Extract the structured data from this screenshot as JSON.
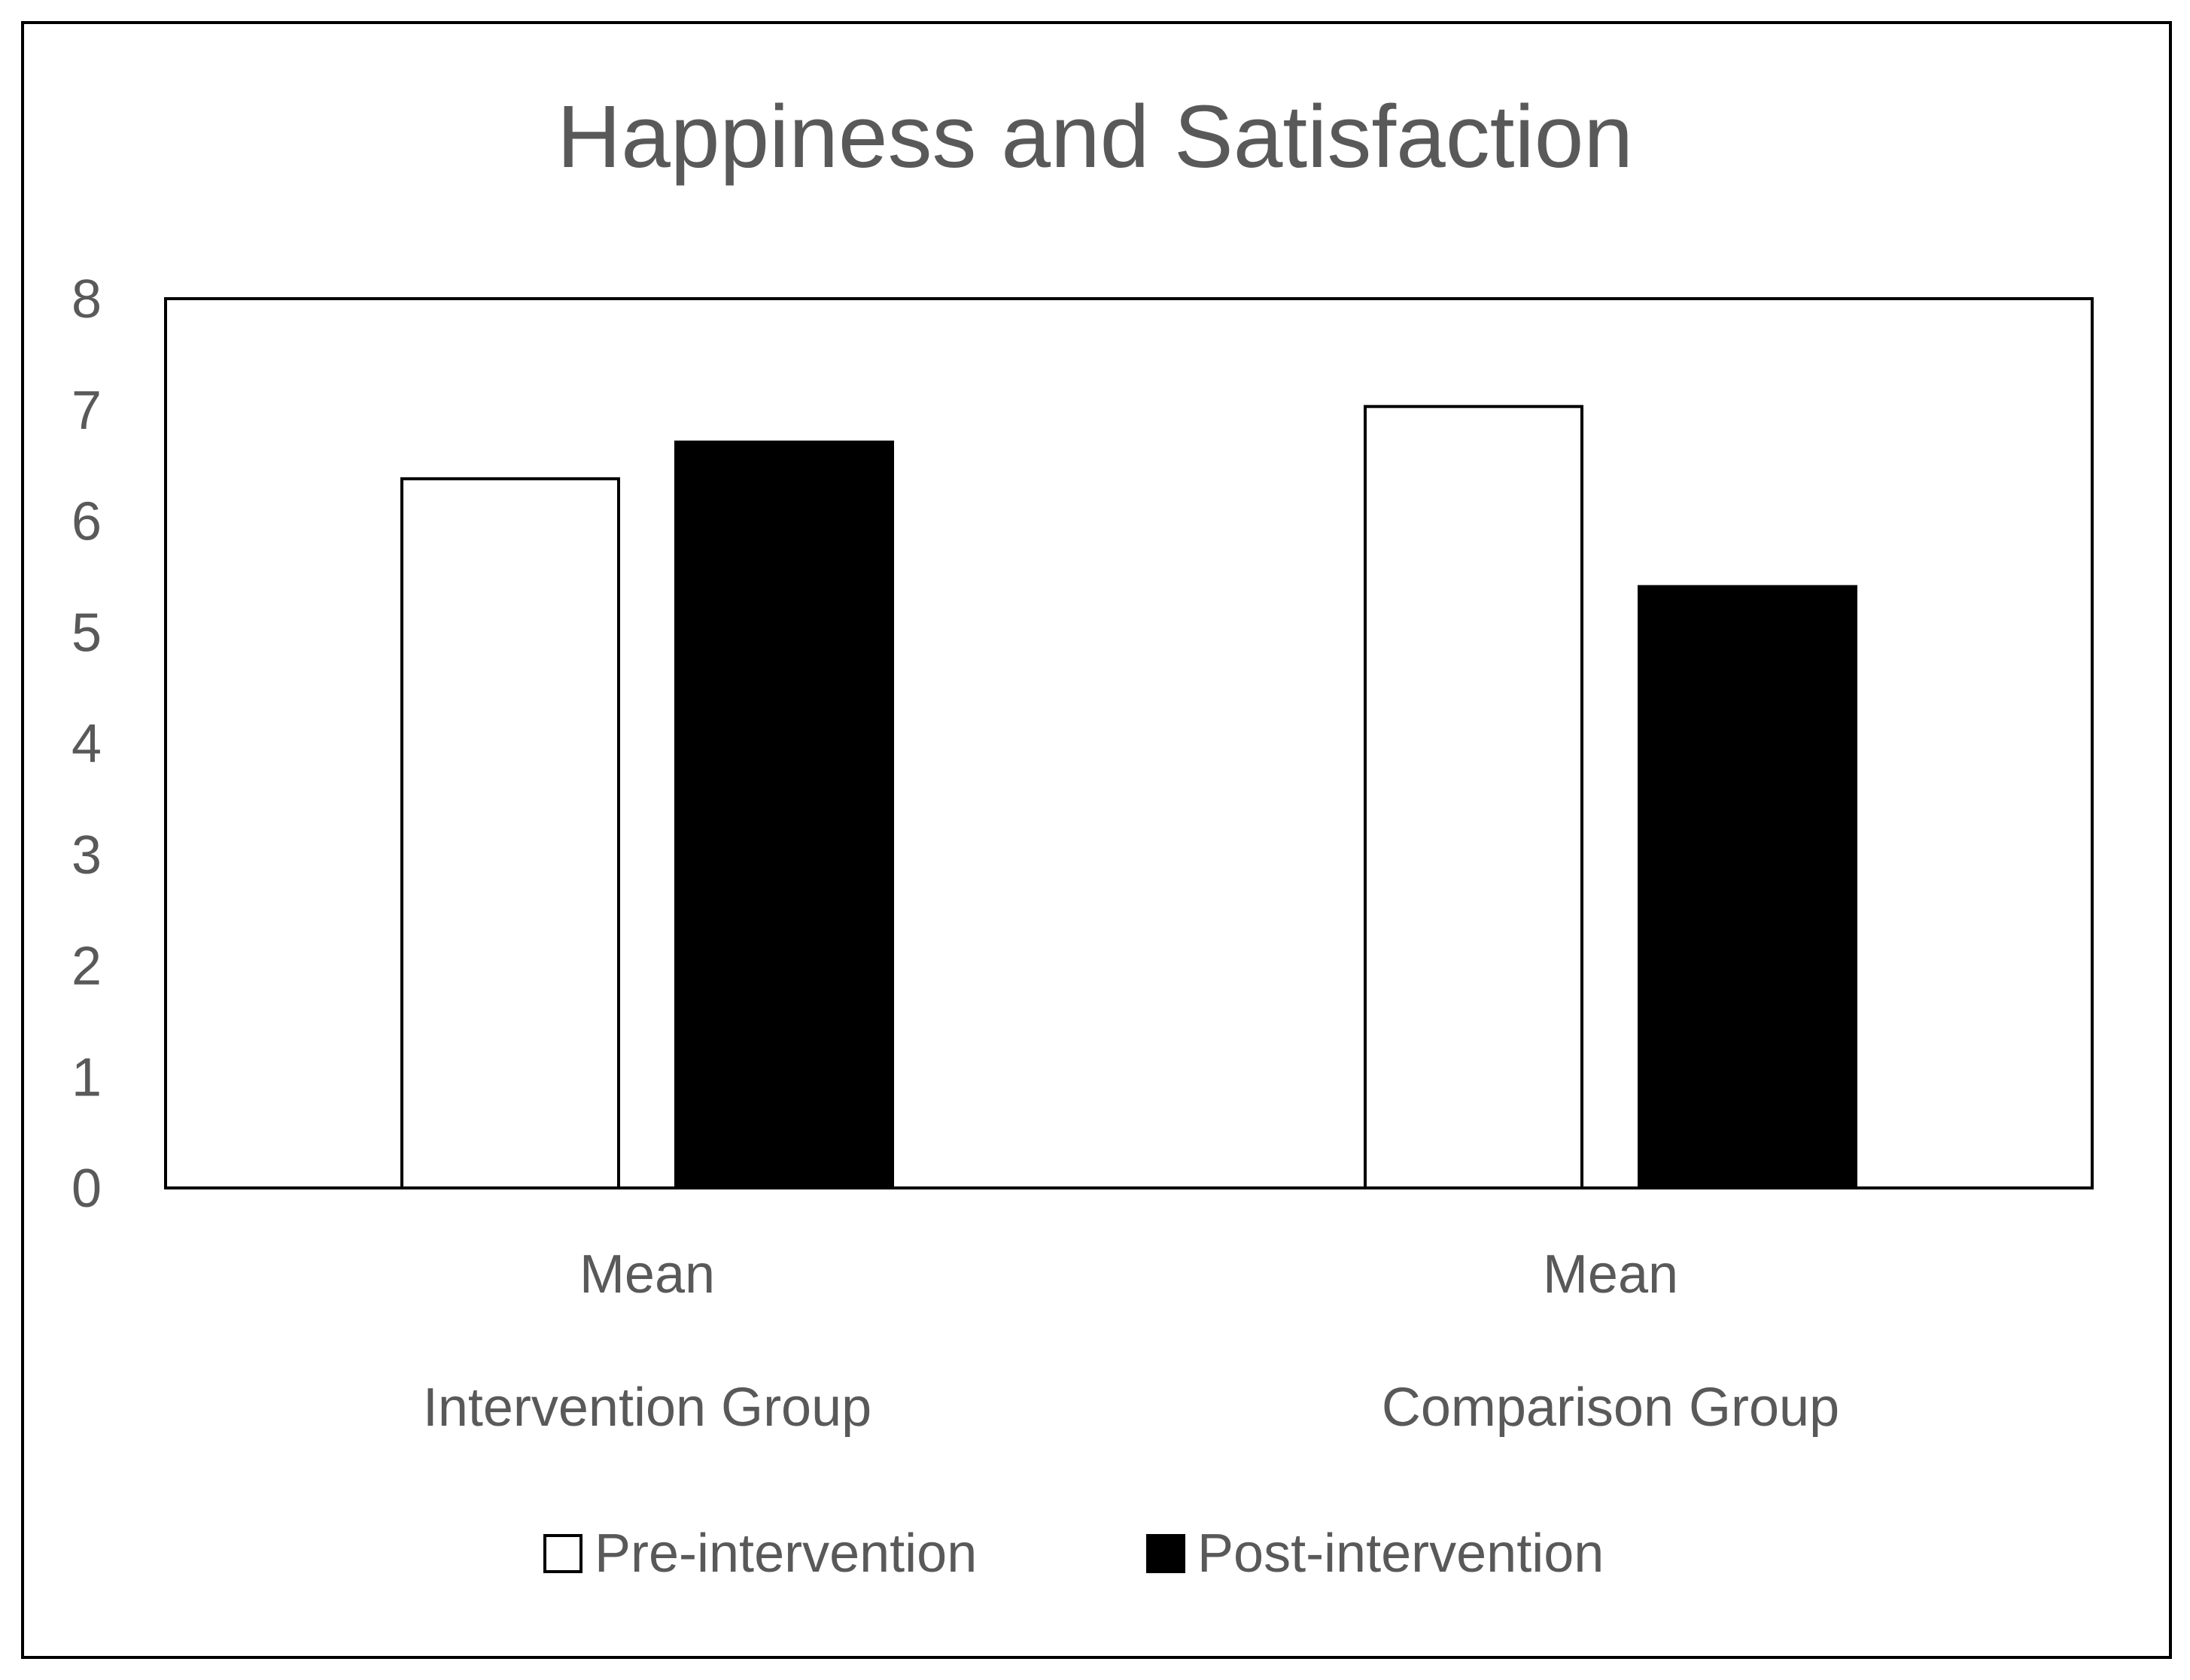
{
  "chart_data": {
    "type": "bar",
    "title": "Happiness and Satisfaction",
    "xlabel": "",
    "ylabel": "",
    "ylim": [
      0,
      8
    ],
    "yticks": [
      0,
      1,
      2,
      3,
      4,
      5,
      6,
      7,
      8
    ],
    "grid": false,
    "legend_position": "bottom",
    "categories": [
      {
        "line1": "Mean",
        "line2": "Intervention Group"
      },
      {
        "line1": "Mean",
        "line2": "Comparison Group"
      }
    ],
    "series": [
      {
        "name": "Pre-intervention",
        "color": "#ffffff",
        "values": [
          6.38,
          7.03
        ]
      },
      {
        "name": "Post-intervention",
        "color": "#000000",
        "values": [
          6.71,
          5.41
        ]
      }
    ]
  }
}
